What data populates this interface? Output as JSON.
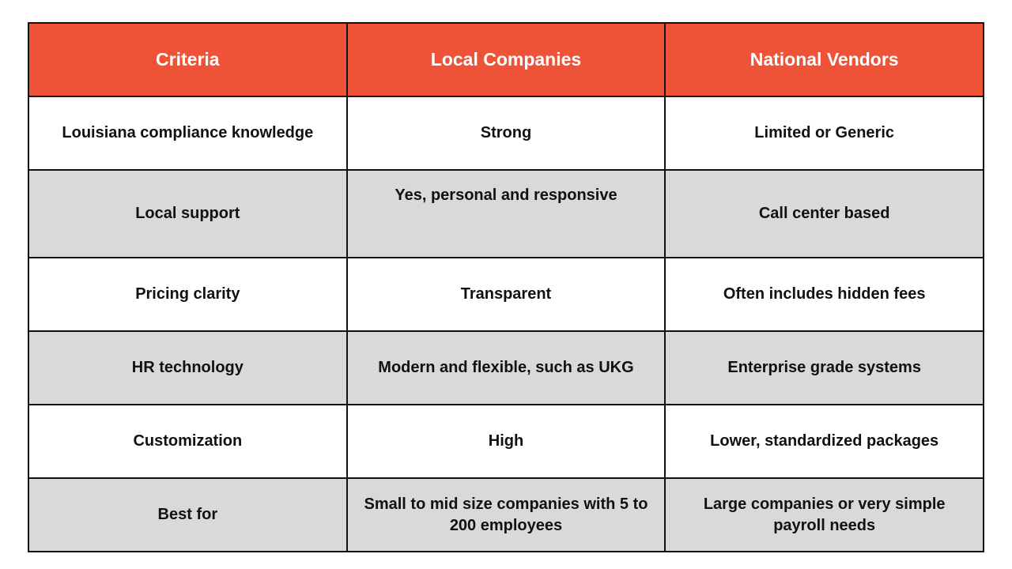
{
  "colors": {
    "header_bg": "#ef5337",
    "header_text": "#ffffff",
    "alt_row_bg": "#d9d9d9",
    "border": "#111111"
  },
  "table": {
    "headers": [
      "Criteria",
      "Local Companies",
      "National Vendors"
    ],
    "rows": [
      [
        "Louisiana compliance knowledge",
        "Strong",
        "Limited or Generic"
      ],
      [
        "Local support",
        "Yes, personal and responsive",
        "Call center based"
      ],
      [
        "Pricing clarity",
        "Transparent",
        "Often includes hidden fees"
      ],
      [
        "HR technology",
        "Modern and flexible, such as UKG",
        "Enterprise grade systems"
      ],
      [
        "Customization",
        "High",
        "Lower, standardized packages"
      ],
      [
        "Best for",
        "Small to mid size companies with 5 to 200 employees",
        "Large companies or very simple payroll needs"
      ]
    ]
  }
}
